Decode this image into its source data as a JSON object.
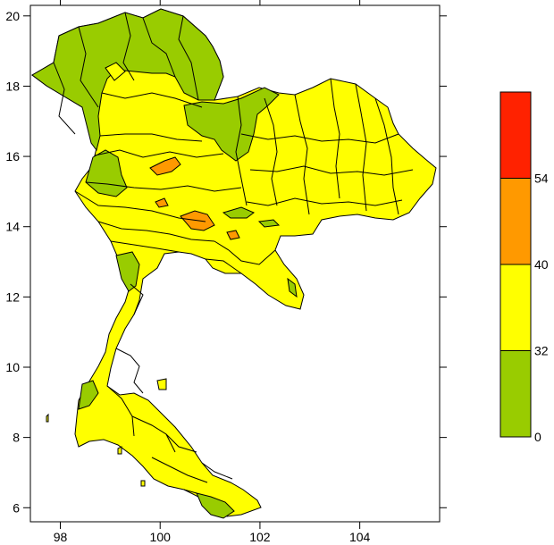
{
  "map": {
    "x_ticks": [
      "98",
      "100",
      "102",
      "104"
    ],
    "y_ticks": [
      "6",
      "8",
      "10",
      "12",
      "14",
      "16",
      "18",
      "20"
    ],
    "x_range": [
      97.4,
      105.6
    ],
    "y_range": [
      5.6,
      20.3
    ]
  },
  "legend": {
    "bins": [
      {
        "from": 0,
        "to": 32,
        "color": "#99cc00"
      },
      {
        "from": 32,
        "to": 40,
        "color": "#ffff00"
      },
      {
        "from": 40,
        "to": 54,
        "color": "#ff9900"
      },
      {
        "from": 54,
        "to": null,
        "color": "#ff2200"
      }
    ],
    "labels": [
      "0",
      "32",
      "40",
      "54"
    ]
  },
  "colors": {
    "green": "#99cc00",
    "yellow": "#ffff00",
    "orange": "#ff9900",
    "red": "#ff2200",
    "border": "#000000"
  }
}
